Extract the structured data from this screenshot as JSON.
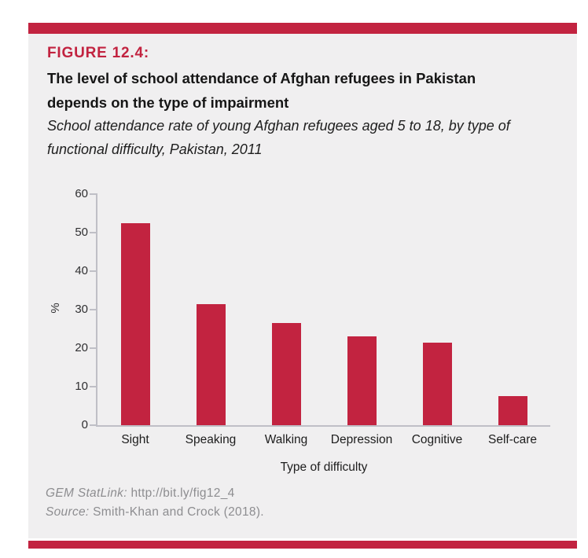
{
  "figure": {
    "label": "FIGURE 12.4:",
    "title_lines": [
      "The level of school attendance of Afghan refugees in Pakistan",
      "depends on the type of impairment"
    ],
    "subtitle_lines": [
      "School attendance rate of young Afghan refugees aged 5 to 18, by type of",
      "functional difficulty, Pakistan, 2011"
    ]
  },
  "chart_data": {
    "type": "bar",
    "categories": [
      "Sight",
      "Speaking",
      "Walking",
      "Depression",
      "Cognitive",
      "Self-care"
    ],
    "values": [
      52.5,
      31.5,
      26.5,
      23,
      21.5,
      7.5
    ],
    "title": "",
    "xlabel": "Type of difficulty",
    "ylabel": "%",
    "ylim": [
      0,
      60
    ],
    "ytick_step": 10,
    "grid": false,
    "legend": false,
    "bar_color": "#C22340"
  },
  "footer": {
    "statlink_label": "GEM StatLink:",
    "statlink_url": "http://bit.ly/fig12_4",
    "source_label": "Source:",
    "source_text": "Smith-Khan and Crock (2018)."
  },
  "colors": {
    "accent_red": "#C22340",
    "panel_bg": "#F0EFF0",
    "axis_gray": "#BFBFC6",
    "footer_gray": "#8D8D90"
  }
}
